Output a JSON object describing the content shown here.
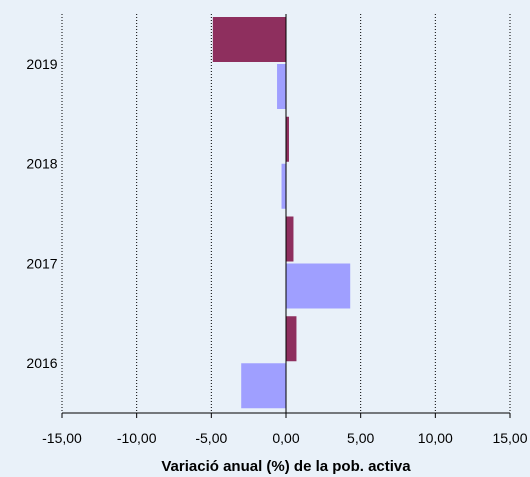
{
  "chart_data": {
    "type": "bar",
    "orientation": "horizontal",
    "categories": [
      "2016",
      "2017",
      "2018",
      "2019"
    ],
    "series": [
      {
        "color": "#8E2F5E",
        "values": [
          0.7,
          0.5,
          0.2,
          -4.9
        ]
      },
      {
        "color": "#9F9FFF",
        "values": [
          -3.0,
          4.3,
          -0.3,
          -0.6
        ]
      }
    ],
    "xlim": [
      -15,
      15
    ],
    "xticks": [
      "-15,00",
      "-10,00",
      "-5,00",
      "0,00",
      "5,00",
      "10,00",
      "15,00"
    ],
    "xlabel": "Variació anual (%) de la pob. activa",
    "ylabel": "",
    "title": "",
    "grid": "vertical dotted",
    "background": "#E9F1F9"
  }
}
